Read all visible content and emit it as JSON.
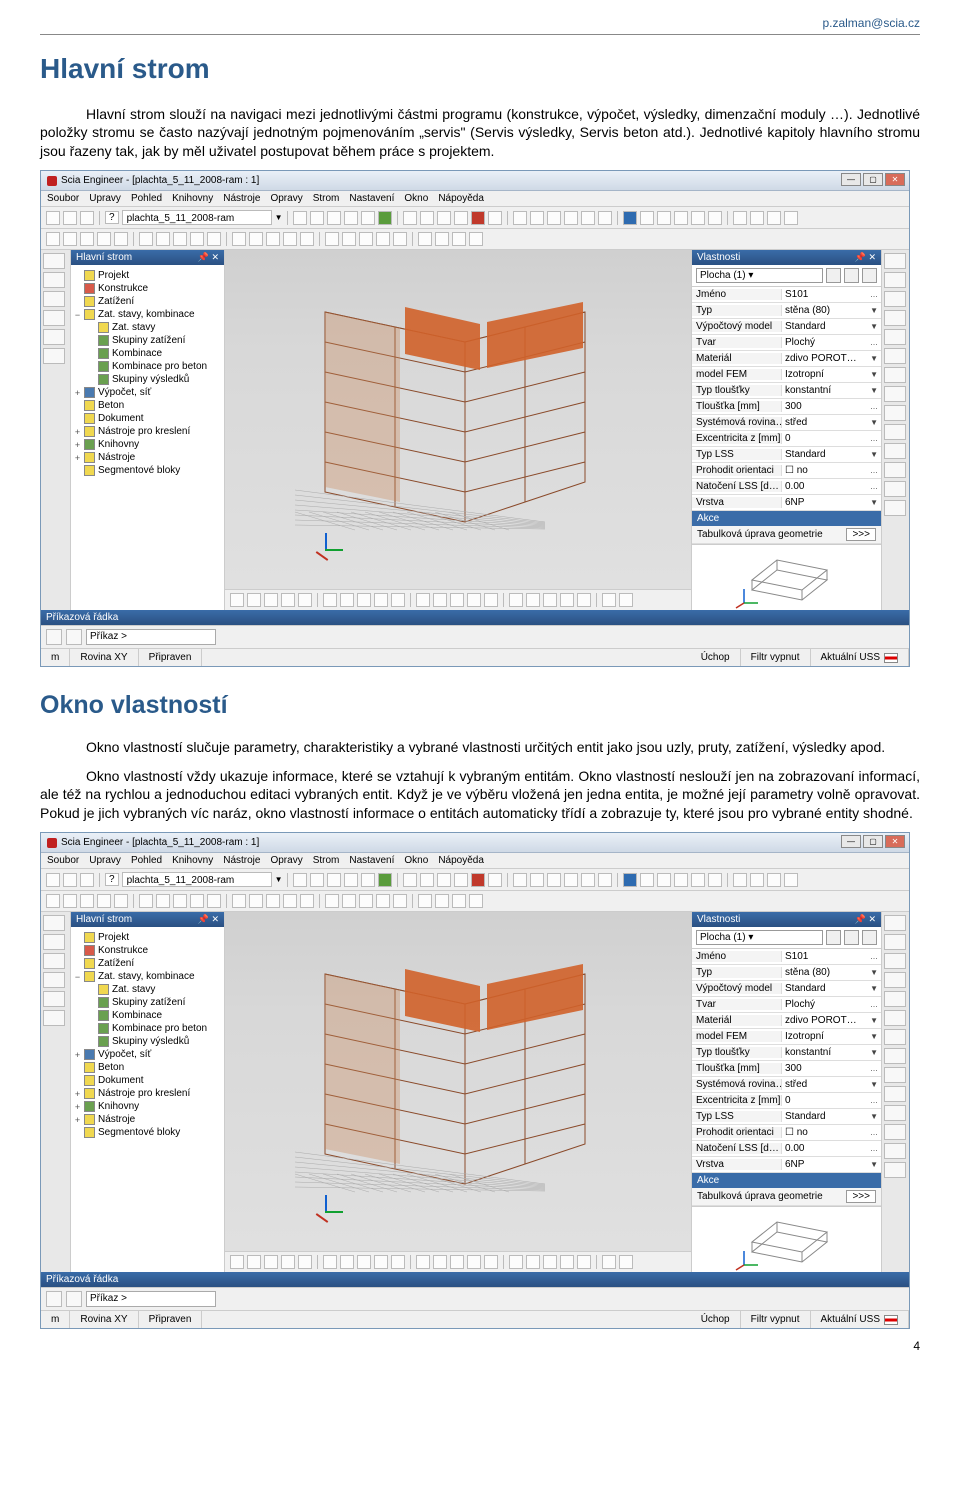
{
  "header": {
    "email": "p.zalman@scia.cz"
  },
  "section1": {
    "title": "Hlavní strom",
    "para": "Hlavní strom slouží na navigaci mezi jednotlivými částmi programu (konstrukce, výpočet, výsledky, dimenzační moduly …). Jednotlivé položky stromu se často nazývají jednotným pojmenováním „servis\" (Servis výsledky, Servis beton atd.). Jednotlivé kapitoly hlavního stromu jsou řazeny tak, jak by měl uživatel postupovat během práce s projektem."
  },
  "section2": {
    "title": "Okno vlastností",
    "para1": "Okno vlastností slučuje parametry, charakteristiky a vybrané vlastnosti určitých entit jako jsou uzly, pruty, zatížení, výsledky apod.",
    "para2": "Okno vlastností vždy ukazuje informace, které se vztahují k vybraným entitám. Okno vlastností neslouží jen na zobrazovaní informací, ale též na rychlou a jednoduchou editaci vybraných entit. Když je ve výběru vložená jen jedna entita, je možné její parametry volně opravovat. Pokud je jich vybraných víc naráz, okno vlastností informace o entitách automaticky třídí a zobrazuje ty, které jsou pro vybrané entity shodné."
  },
  "screenshot": {
    "app_title": "Scia Engineer - [plachta_5_11_2008-ram : 1]",
    "menu": [
      "Soubor",
      "Upravy",
      "Pohled",
      "Knihovny",
      "Nástroje",
      "Opravy",
      "Strom",
      "Nastavení",
      "Okno",
      "Nápoyěda"
    ],
    "path": "plachta_5_11_2008-ram",
    "tree_title": "Hlavní strom",
    "tree": [
      {
        "lvl": 0,
        "txt": "Projekt",
        "ico": "y"
      },
      {
        "lvl": 0,
        "txt": "Konstrukce",
        "ico": "r"
      },
      {
        "lvl": 0,
        "txt": "Zatížení",
        "ico": "y"
      },
      {
        "lvl": 0,
        "txt": "Zat. stavy, kombinace",
        "ico": "y",
        "exp": "−"
      },
      {
        "lvl": 1,
        "txt": "Zat. stavy",
        "ico": "y"
      },
      {
        "lvl": 1,
        "txt": "Skupiny zatížení",
        "ico": "g"
      },
      {
        "lvl": 1,
        "txt": "Kombinace",
        "ico": "g"
      },
      {
        "lvl": 1,
        "txt": "Kombinace pro beton",
        "ico": "g"
      },
      {
        "lvl": 1,
        "txt": "Skupiny výsledků",
        "ico": "g"
      },
      {
        "lvl": 0,
        "txt": "Výpočet, síť",
        "ico": "b",
        "exp": "+"
      },
      {
        "lvl": 0,
        "txt": "Beton",
        "ico": "y"
      },
      {
        "lvl": 0,
        "txt": "Dokument",
        "ico": "y"
      },
      {
        "lvl": 0,
        "txt": "Nástroje pro kreslení",
        "ico": "y",
        "exp": "+"
      },
      {
        "lvl": 0,
        "txt": "Knihovny",
        "ico": "g",
        "exp": "+"
      },
      {
        "lvl": 0,
        "txt": "Nástroje",
        "ico": "y",
        "exp": "+"
      },
      {
        "lvl": 0,
        "txt": "Segmentové bloky",
        "ico": "y"
      }
    ],
    "props_title": "Vlastnosti",
    "selector": "Plocha (1)",
    "props": [
      {
        "k": "Jméno",
        "v": "S101",
        "dd": false
      },
      {
        "k": "Typ",
        "v": "stěna (80)",
        "dd": true
      },
      {
        "k": "Výpočtový model",
        "v": "Standard",
        "dd": true
      },
      {
        "k": "Tvar",
        "v": "Plochý",
        "dd": false
      },
      {
        "k": "Materiál",
        "v": "zdivo POROT…",
        "dd": true
      },
      {
        "k": "model FEM",
        "v": "Izotropní",
        "dd": true
      },
      {
        "k": "Typ tloušťky",
        "v": "konstantní",
        "dd": true
      },
      {
        "k": "Tloušťka [mm]",
        "v": "300",
        "dd": false
      },
      {
        "k": "Systémová rovina…",
        "v": "střed",
        "dd": true
      },
      {
        "k": "Excentricita z [mm]",
        "v": "0",
        "dd": false
      },
      {
        "k": "Typ LSS",
        "v": "Standard",
        "dd": true
      },
      {
        "k": "Prohodit orientaci",
        "v": "☐ no",
        "dd": false
      },
      {
        "k": "Natočení LSS [d…",
        "v": "0.00",
        "dd": false
      },
      {
        "k": "Vrstva",
        "v": "6NP",
        "dd": true
      }
    ],
    "akce_title": "Akce",
    "akce_row": "Tabulková úprava geometrie",
    "akce_btn": ">>>",
    "cmd_title": "Příkazová řádka",
    "cmd_prompt": "Příkaz >",
    "status": {
      "m": "m",
      "plane": "Rovina XY",
      "ready": "Připraven",
      "snap": "Úchop",
      "filter": "Filtr vypnut",
      "uss": "Aktuální USS"
    }
  },
  "page_number": "4"
}
